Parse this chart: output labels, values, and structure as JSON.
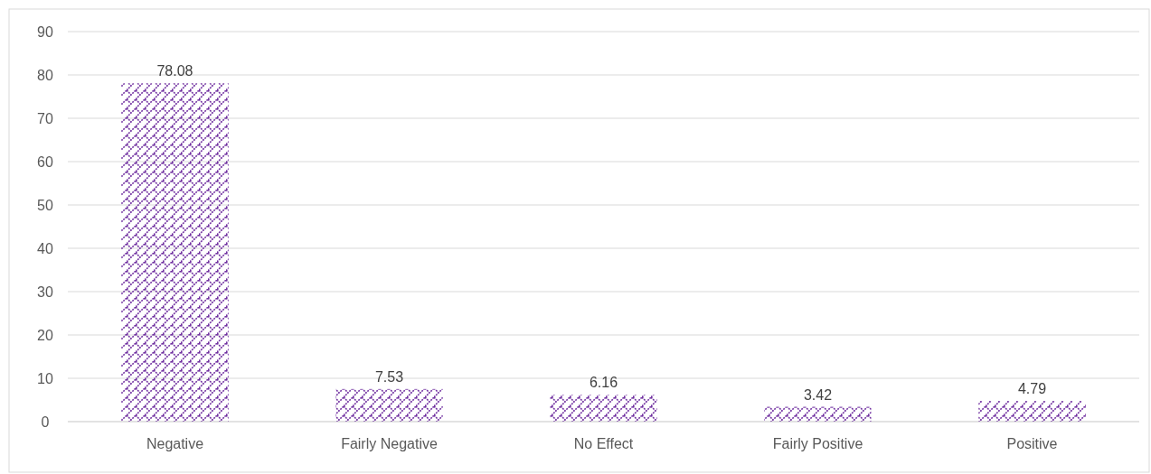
{
  "chart_data": {
    "type": "bar",
    "categories": [
      "Negative",
      "Fairly Negative",
      "No Effect",
      "Fairly Positive",
      "Positive"
    ],
    "values": [
      78.08,
      7.53,
      6.16,
      3.42,
      4.79
    ],
    "color": "#7030a0",
    "data_labels": true,
    "ylim": [
      0,
      90
    ],
    "yticks": [
      0,
      10,
      20,
      30,
      40,
      50,
      60,
      70,
      80,
      90
    ],
    "grid": "y"
  }
}
